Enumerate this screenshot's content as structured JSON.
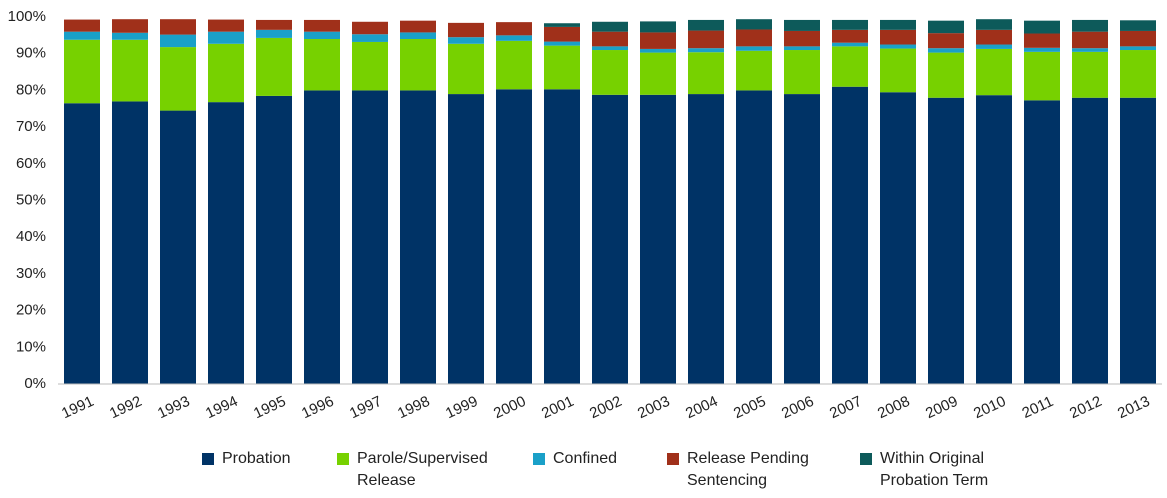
{
  "chart_data": {
    "type": "stacked_bar",
    "categories": [
      "1991",
      "1992",
      "1993",
      "1994",
      "1995",
      "1996",
      "1997",
      "1998",
      "1999",
      "2000",
      "2001",
      "2002",
      "2003",
      "2004",
      "2005",
      "2006",
      "2007",
      "2008",
      "2009",
      "2010",
      "2011",
      "2012",
      "2013"
    ],
    "series": [
      {
        "name": "Probation",
        "color": "#003366",
        "values": [
          76.5,
          77,
          74.5,
          76.8,
          78.5,
          80,
          80,
          80,
          79,
          80.3,
          80.3,
          78.8,
          78.8,
          79,
          80,
          79,
          81,
          79.5,
          78,
          78.7,
          77.3,
          78,
          78
        ]
      },
      {
        "name": "Parole/Supervised Release",
        "color": "#77d100",
        "values": [
          17.3,
          16.8,
          17.3,
          15.9,
          15.8,
          14,
          13.2,
          14,
          13.7,
          13.2,
          11.9,
          12.2,
          11.5,
          11.4,
          10.8,
          12,
          11,
          11.9,
          12.3,
          12.6,
          13.2,
          12.5,
          13
        ]
      },
      {
        "name": "Confined",
        "color": "#1aa0c8",
        "values": [
          2.2,
          1.9,
          3.4,
          3.3,
          2.2,
          2,
          2.1,
          1.8,
          1.8,
          1.5,
          1.1,
          1,
          1,
          1.1,
          1.2,
          1,
          1,
          1.1,
          1.2,
          1.2,
          1.1,
          1,
          1
        ]
      },
      {
        "name": "Release Pending Sentencing",
        "color": "#a0301a",
        "values": [
          3.3,
          3.7,
          4.2,
          3.3,
          2.7,
          3.2,
          3.4,
          3.2,
          3.9,
          3.6,
          4,
          4,
          4.5,
          4.8,
          4.6,
          4.2,
          3.5,
          4,
          4.1,
          4,
          3.9,
          4.5,
          4.2
        ]
      },
      {
        "name": "Within Original Probation Term",
        "color": "#0d5a5a",
        "values": [
          0,
          0,
          0,
          0,
          0,
          0,
          0,
          0,
          0,
          0,
          1,
          2.7,
          3,
          2.9,
          2.8,
          3,
          2.7,
          2.7,
          3.4,
          2.9,
          3.5,
          3.2,
          2.9
        ]
      }
    ],
    "ylim": [
      0,
      100
    ],
    "yticks": [
      {
        "value": 0,
        "label": "0%"
      },
      {
        "value": 10,
        "label": "10%"
      },
      {
        "value": 20,
        "label": "20%"
      },
      {
        "value": 30,
        "label": "30%"
      },
      {
        "value": 40,
        "label": "40%"
      },
      {
        "value": 50,
        "label": "50%"
      },
      {
        "value": 60,
        "label": "60%"
      },
      {
        "value": 70,
        "label": "70%"
      },
      {
        "value": 80,
        "label": "80%"
      },
      {
        "value": 90,
        "label": "90%"
      },
      {
        "value": 100,
        "label": "100%"
      }
    ],
    "grid": false,
    "legend": "bottom"
  }
}
